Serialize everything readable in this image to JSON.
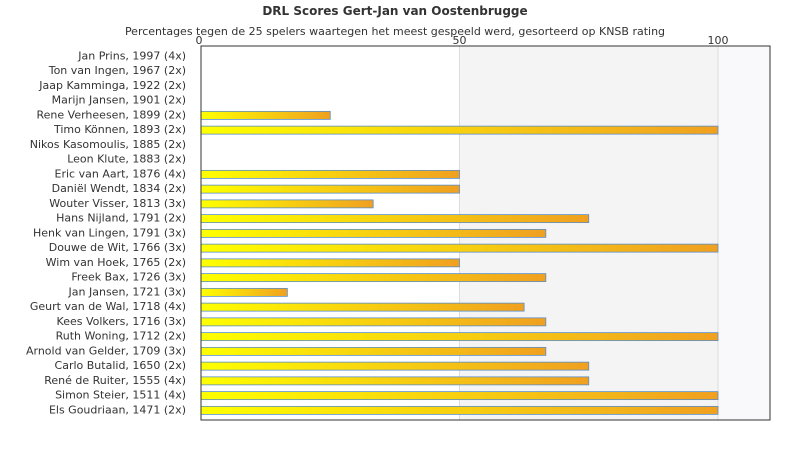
{
  "chart_data": {
    "type": "bar",
    "orientation": "horizontal",
    "title": "DRL Scores Gert-Jan van Oostenbrugge",
    "subtitle": "Percentages tegen de 25 spelers waartegen het meest gespeeld werd, gesorteerd op KNSB rating",
    "xlim": [
      0,
      100
    ],
    "x_ticks": [
      "0",
      "50",
      "100"
    ],
    "grid": true,
    "categories": [
      "Jan Prins, 1997 (4x)",
      "Ton van Ingen, 1967 (2x)",
      "Jaap Kamminga, 1922 (2x)",
      "Marijn Jansen, 1901 (2x)",
      "Rene Verheesen, 1899 (2x)",
      "Timo Können, 1893 (2x)",
      "Nikos Kasomoulis, 1885 (2x)",
      "Leon Klute, 1883 (2x)",
      "Eric van Aart, 1876 (4x)",
      "Daniël Wendt, 1834 (2x)",
      "Wouter Visser, 1813 (3x)",
      "Hans Nijland, 1791 (2x)",
      "Henk van Lingen, 1791 (3x)",
      "Douwe de Wit, 1766 (3x)",
      "Wim van Hoek, 1765 (2x)",
      "Freek Bax, 1726 (3x)",
      "Jan Jansen, 1721 (3x)",
      "Geurt van de Wal, 1718 (4x)",
      "Kees Volkers, 1716 (3x)",
      "Ruth Woning, 1712 (2x)",
      "Arnold van Gelder, 1709 (3x)",
      "Carlo Butalid, 1650 (2x)",
      "René de Ruiter, 1555 (4x)",
      "Simon Steier, 1511 (4x)",
      "Els Goudriaan, 1471 (2x)"
    ],
    "values": [
      0,
      0,
      0,
      0,
      25,
      100,
      0,
      0,
      50,
      50,
      33.3,
      75,
      66.7,
      100,
      50,
      66.7,
      16.7,
      62.5,
      66.7,
      100,
      66.7,
      75,
      75,
      100,
      100
    ],
    "colors": {
      "bar_start": "#ffff00",
      "bar_end": "#f0a020",
      "bar_stroke": "#5a8fc8",
      "band_shade": "#f4f4f4",
      "grid": "#dddddd",
      "axis": "#333333"
    }
  }
}
